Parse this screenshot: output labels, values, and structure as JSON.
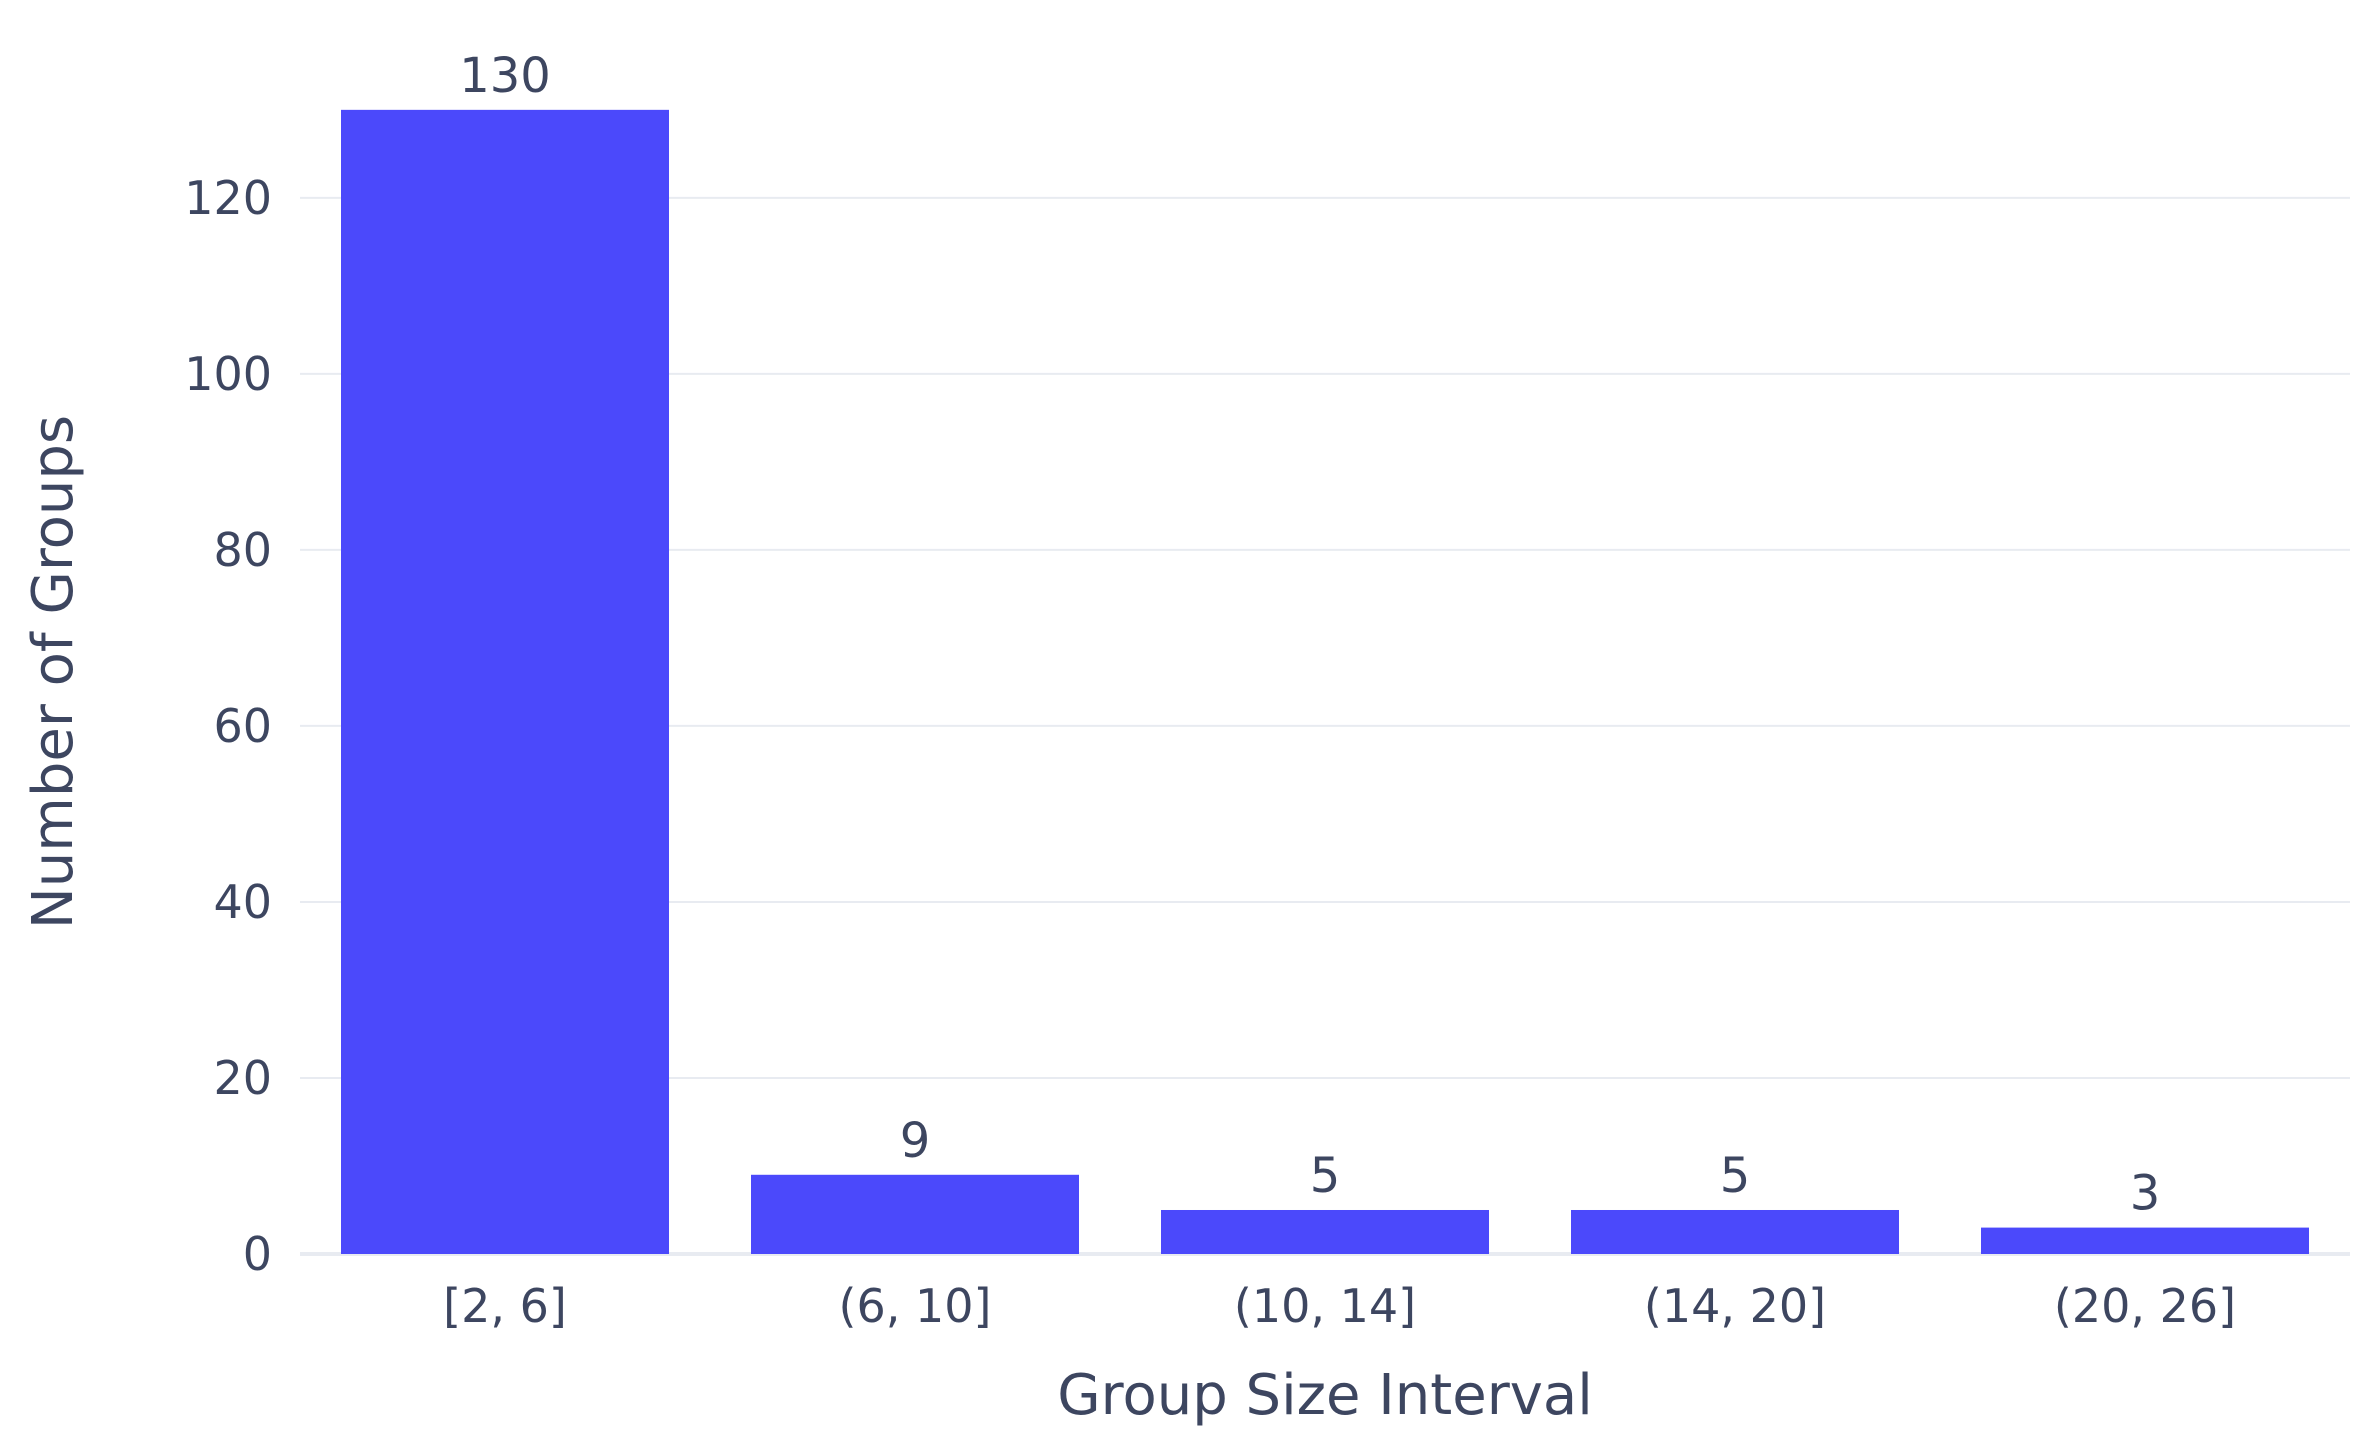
{
  "chart_data": {
    "type": "bar",
    "categories": [
      "[2, 6]",
      "(6, 10]",
      "(10, 14]",
      "(14, 20]",
      "(20, 26]"
    ],
    "values": [
      130,
      9,
      5,
      5,
      3
    ],
    "data_labels": [
      "130",
      "9",
      "5",
      "5",
      "3"
    ],
    "xlabel": "Group Size Interval",
    "ylabel": "Number of Groups",
    "ylim": [
      0,
      136.8
    ],
    "yticks": [
      0,
      20,
      40,
      60,
      80,
      100,
      120
    ],
    "ytick_labels": [
      "0",
      "20",
      "40",
      "60",
      "80",
      "100",
      "120"
    ],
    "grid": true,
    "legend": "none",
    "bar_color": "#4b49fb"
  }
}
